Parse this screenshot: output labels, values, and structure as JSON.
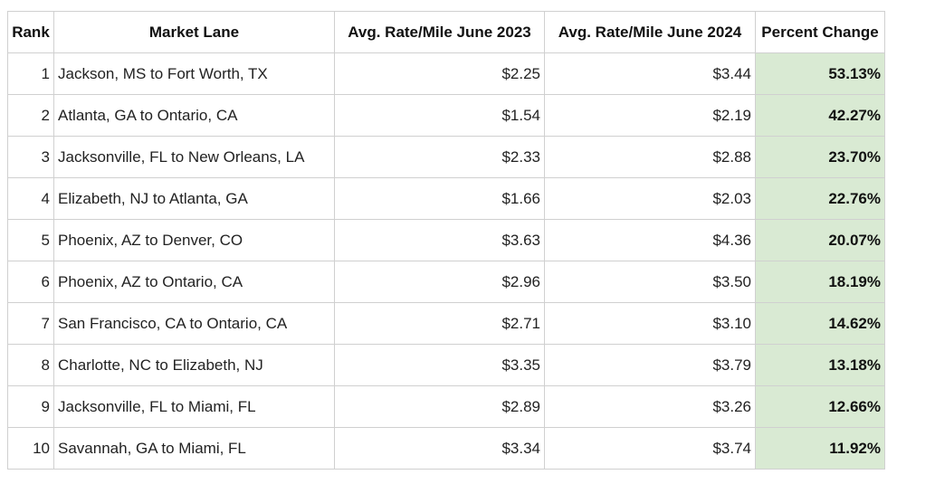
{
  "chart_data": {
    "type": "table",
    "columns": [
      "Rank",
      "Market Lane",
      "Avg. Rate/Mile June 2023",
      "Avg. Rate/Mile June 2024",
      "Percent Change"
    ],
    "rows": [
      [
        "1",
        "Jackson, MS to Fort Worth, TX",
        "$2.25",
        "$3.44",
        "53.13%"
      ],
      [
        "2",
        "Atlanta, GA to Ontario, CA",
        "$1.54",
        "$2.19",
        "42.27%"
      ],
      [
        "3",
        "Jacksonville, FL to New Orleans, LA",
        "$2.33",
        "$2.88",
        "23.70%"
      ],
      [
        "4",
        "Elizabeth, NJ to Atlanta, GA",
        "$1.66",
        "$2.03",
        "22.76%"
      ],
      [
        "5",
        "Phoenix, AZ to Denver, CO",
        "$3.63",
        "$4.36",
        "20.07%"
      ],
      [
        "6",
        "Phoenix, AZ to Ontario, CA",
        "$2.96",
        "$3.50",
        "18.19%"
      ],
      [
        "7",
        "San Francisco, CA to Ontario, CA",
        "$2.71",
        "$3.10",
        "14.62%"
      ],
      [
        "8",
        "Charlotte, NC to Elizabeth, NJ",
        "$3.35",
        "$3.79",
        "13.18%"
      ],
      [
        "9",
        "Jacksonville, FL to Miami, FL",
        "$2.89",
        "$3.26",
        "12.66%"
      ],
      [
        "10",
        "Savannah, GA to Miami, FL",
        "$3.34",
        "$3.74",
        "11.92%"
      ]
    ],
    "highlight_column": "Percent Change"
  },
  "colors": {
    "header_text": "#111111",
    "body_text": "#222222",
    "grid_line": "#d0d0d0",
    "percent_change_fill": "#d9ead3"
  }
}
